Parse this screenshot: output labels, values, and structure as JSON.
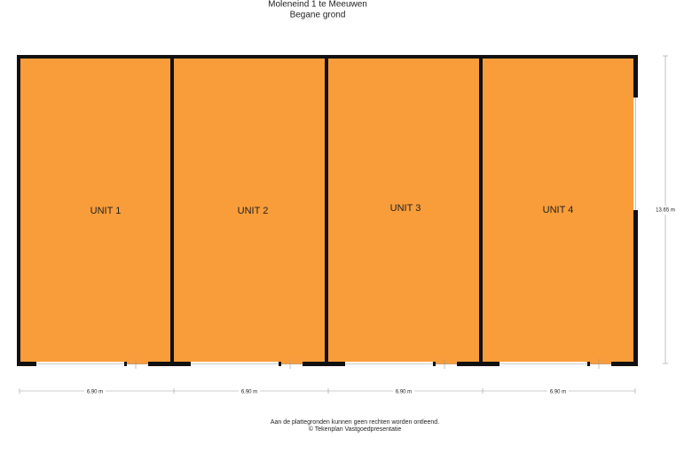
{
  "header": {
    "title": "Moleneind 1 te Meeuwen",
    "subtitle": "Begane grond"
  },
  "units": [
    {
      "label": "UNIT 1"
    },
    {
      "label": "UNIT 2"
    },
    {
      "label": "UNIT 3"
    },
    {
      "label": "UNIT 4"
    }
  ],
  "dimensions": {
    "width": [
      "6.90 m",
      "6.90 m",
      "6.90 m",
      "6.90 m"
    ],
    "depth": "13.65 m"
  },
  "footer": {
    "disclaimer": "Aan de plattegronden kunnen geen rechten worden ontleend.",
    "credit": "© Tekenplan Vastgoedpresentatie"
  }
}
